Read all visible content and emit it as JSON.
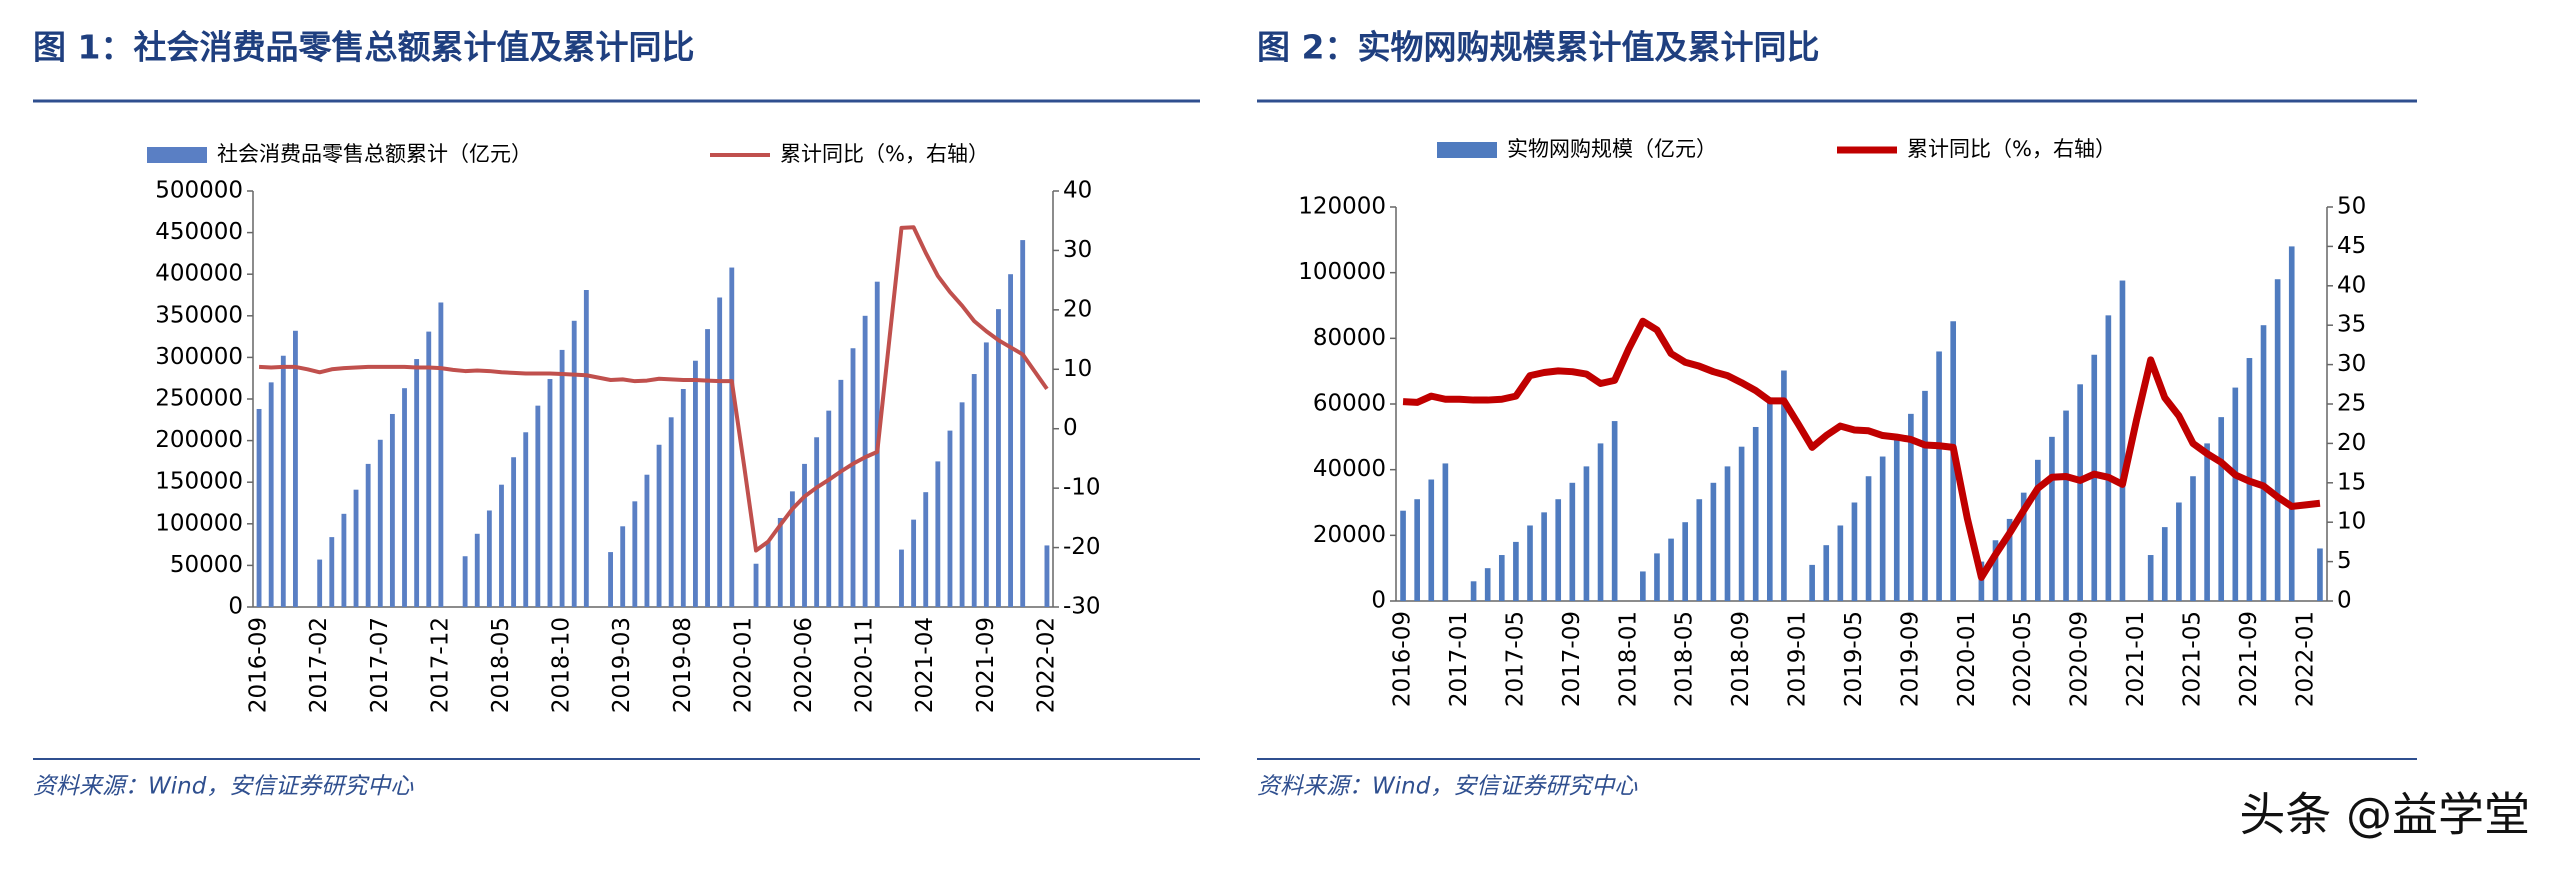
{
  "watermark": "头条 @益学堂",
  "chart_data": [
    {
      "type": "combo",
      "title": "图 1：社会消费品零售总额累计值及累计同比",
      "source": "资料来源：Wind，安信证券研究中心",
      "categories": [
        "2016-09",
        null,
        null,
        null,
        null,
        "2017-02",
        null,
        null,
        null,
        null,
        "2017-07",
        null,
        null,
        null,
        null,
        "2017-12",
        null,
        null,
        null,
        null,
        "2018-05",
        null,
        null,
        null,
        null,
        "2018-10",
        null,
        null,
        null,
        null,
        "2019-03",
        null,
        null,
        null,
        null,
        "2019-08",
        null,
        null,
        null,
        null,
        "2020-01",
        null,
        null,
        null,
        null,
        "2020-06",
        null,
        null,
        null,
        null,
        "2020-11",
        null,
        null,
        null,
        null,
        "2021-04",
        null,
        null,
        null,
        null,
        "2021-09",
        null,
        null,
        null,
        null,
        "2022-02"
      ],
      "series": [
        {
          "name": "社会消费品零售总额累计（亿元）",
          "type": "bar",
          "color": "#5a7fc4",
          "axis": "y",
          "values": [
            238000,
            270000,
            302000,
            332000,
            null,
            57000,
            84000,
            112000,
            141000,
            172000,
            201000,
            232000,
            263000,
            298000,
            331000,
            366000,
            null,
            61000,
            88000,
            116000,
            147000,
            180000,
            210000,
            242000,
            274000,
            309000,
            344000,
            381000,
            null,
            66000,
            97000,
            127000,
            159000,
            195000,
            228000,
            262000,
            296000,
            334000,
            372000,
            408000,
            null,
            52000,
            79000,
            107000,
            139000,
            172000,
            204000,
            236000,
            273000,
            311000,
            350000,
            391000,
            null,
            69000,
            105000,
            138000,
            175000,
            212000,
            246000,
            280000,
            318000,
            358000,
            400000,
            441000,
            null,
            74000
          ]
        },
        {
          "name": "累计同比（%，右轴）",
          "type": "line",
          "color": "#c0504d",
          "axis": "y2",
          "values": [
            10.4,
            10.3,
            10.4,
            10.4,
            10.0,
            9.5,
            10.0,
            10.2,
            10.3,
            10.4,
            10.4,
            10.4,
            10.4,
            10.3,
            10.3,
            10.2,
            9.9,
            9.7,
            9.8,
            9.7,
            9.5,
            9.4,
            9.3,
            9.3,
            9.3,
            9.2,
            9.1,
            9.0,
            8.6,
            8.2,
            8.3,
            8.0,
            8.1,
            8.4,
            8.3,
            8.2,
            8.2,
            8.1,
            8.0,
            8.0,
            -6.0,
            -20.5,
            -19.0,
            -16.2,
            -13.5,
            -11.4,
            -9.9,
            -8.6,
            -7.2,
            -5.9,
            -4.8,
            -3.9,
            15.0,
            33.8,
            33.9,
            29.6,
            25.7,
            23.0,
            20.7,
            18.1,
            16.4,
            14.9,
            13.7,
            12.5,
            9.6,
            6.7
          ]
        }
      ],
      "ylim": [
        0,
        500000
      ],
      "yticks": [
        0,
        50000,
        100000,
        150000,
        200000,
        250000,
        300000,
        350000,
        400000,
        450000,
        500000
      ],
      "y2lim": [
        -30,
        40
      ],
      "y2ticks": [
        -30,
        -20,
        -10,
        0,
        10,
        20,
        30,
        40
      ]
    },
    {
      "type": "combo",
      "title": "图 2：实物网购规模累计值及累计同比",
      "source": "资料来源：Wind，安信证券研究中心",
      "categories": [
        "2016-09",
        null,
        null,
        null,
        "2017-01",
        null,
        null,
        null,
        "2017-05",
        null,
        null,
        null,
        "2017-09",
        null,
        null,
        null,
        "2018-01",
        null,
        null,
        null,
        "2018-05",
        null,
        null,
        null,
        "2018-09",
        null,
        null,
        null,
        "2019-01",
        null,
        null,
        null,
        "2019-05",
        null,
        null,
        null,
        "2019-09",
        null,
        null,
        null,
        "2020-01",
        null,
        null,
        null,
        "2020-05",
        null,
        null,
        null,
        "2020-09",
        null,
        null,
        null,
        "2021-01",
        null,
        null,
        null,
        "2021-05",
        null,
        null,
        null,
        "2021-09",
        null,
        null,
        null,
        "2022-01",
        null
      ],
      "series": [
        {
          "name": "实物网购规模（亿元）",
          "type": "bar",
          "color": "#4f7bbf",
          "axis": "y",
          "values": [
            27500,
            31000,
            37000,
            41900,
            null,
            6000,
            10000,
            14000,
            18000,
            23000,
            27000,
            31000,
            36000,
            41000,
            48000,
            54800,
            null,
            9000,
            14500,
            19000,
            24000,
            31000,
            36000,
            41000,
            47000,
            53000,
            62000,
            70200,
            null,
            11000,
            17000,
            23000,
            30000,
            38000,
            44000,
            50000,
            57000,
            64000,
            76000,
            85200,
            null,
            12000,
            18500,
            25000,
            33000,
            43000,
            50000,
            58000,
            66000,
            75000,
            87000,
            97600,
            null,
            14000,
            22500,
            30000,
            38000,
            48000,
            56000,
            65000,
            74000,
            84000,
            98000,
            108000,
            null,
            16000
          ]
        },
        {
          "name": "累计同比（%，右轴）",
          "type": "line",
          "color": "#c00000",
          "axis": "y2",
          "values": [
            25.3,
            25.2,
            26.0,
            25.6,
            25.6,
            25.5,
            25.5,
            25.6,
            26.0,
            28.6,
            29.0,
            29.2,
            29.1,
            28.8,
            27.6,
            28.0,
            32.0,
            35.5,
            34.4,
            31.4,
            30.3,
            29.8,
            29.1,
            28.6,
            27.7,
            26.7,
            25.4,
            25.4,
            22.5,
            19.5,
            21.0,
            22.2,
            21.7,
            21.6,
            21.0,
            20.8,
            20.5,
            19.8,
            19.7,
            19.5,
            10.5,
            3.0,
            5.9,
            8.6,
            11.5,
            14.3,
            15.7,
            15.8,
            15.3,
            16.1,
            15.7,
            14.8,
            23.0,
            30.6,
            25.8,
            23.5,
            20.0,
            18.7,
            17.6,
            16.0,
            15.2,
            14.6,
            13.2,
            12.0,
            12.2,
            12.4
          ]
        }
      ],
      "ylim": [
        0,
        120000
      ],
      "yticks": [
        0,
        20000,
        40000,
        60000,
        80000,
        100000,
        120000
      ],
      "y2lim": [
        0,
        50
      ],
      "y2ticks": [
        0,
        5,
        10,
        15,
        20,
        25,
        30,
        35,
        40,
        45,
        50
      ]
    }
  ]
}
